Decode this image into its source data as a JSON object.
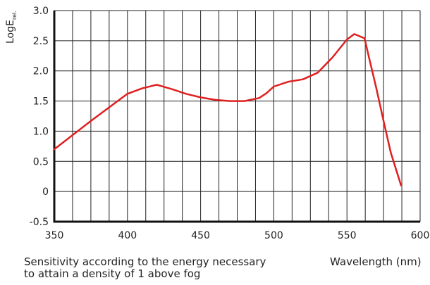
{
  "chart_data": {
    "type": "line",
    "ylabel_main": "LogE",
    "ylabel_sub": "rel.",
    "xlabel": "Wavelength (nm)",
    "note_lines": [
      "Sensitivity according to the energy necessary",
      "to attain a density of 1 above fog"
    ],
    "xlim": [
      350,
      600
    ],
    "ylim": [
      -0.5,
      3.0
    ],
    "x_ticks": [
      350,
      400,
      450,
      500,
      550,
      600
    ],
    "x_tick_labels": [
      "350",
      "400",
      "450",
      "500",
      "550",
      "600"
    ],
    "y_ticks": [
      -0.5,
      0,
      0.5,
      1.0,
      1.5,
      2.0,
      2.5,
      3.0
    ],
    "y_tick_labels": [
      "-0.5",
      "0",
      "0.5",
      "1.0",
      "1.5",
      "2.0",
      "2.5",
      "3.0"
    ],
    "x_grid_step": 12.5,
    "grid": true,
    "series": [
      {
        "color": "#e02020",
        "x": [
          350,
          375,
          400,
          410,
          420,
          430,
          440,
          450,
          460,
          470,
          480,
          490,
          495,
          500,
          510,
          520,
          530,
          540,
          550,
          555,
          562,
          565,
          570,
          575,
          580,
          587
        ],
        "y": [
          0.7,
          1.17,
          1.62,
          1.71,
          1.77,
          1.7,
          1.62,
          1.56,
          1.52,
          1.5,
          1.5,
          1.55,
          1.63,
          1.74,
          1.82,
          1.86,
          1.97,
          2.22,
          2.52,
          2.61,
          2.54,
          2.23,
          1.72,
          1.17,
          0.64,
          0.1
        ]
      }
    ]
  },
  "colors": {
    "line": "#e02020",
    "grid": "#222222",
    "axis": "#111111",
    "text": "#222222"
  }
}
